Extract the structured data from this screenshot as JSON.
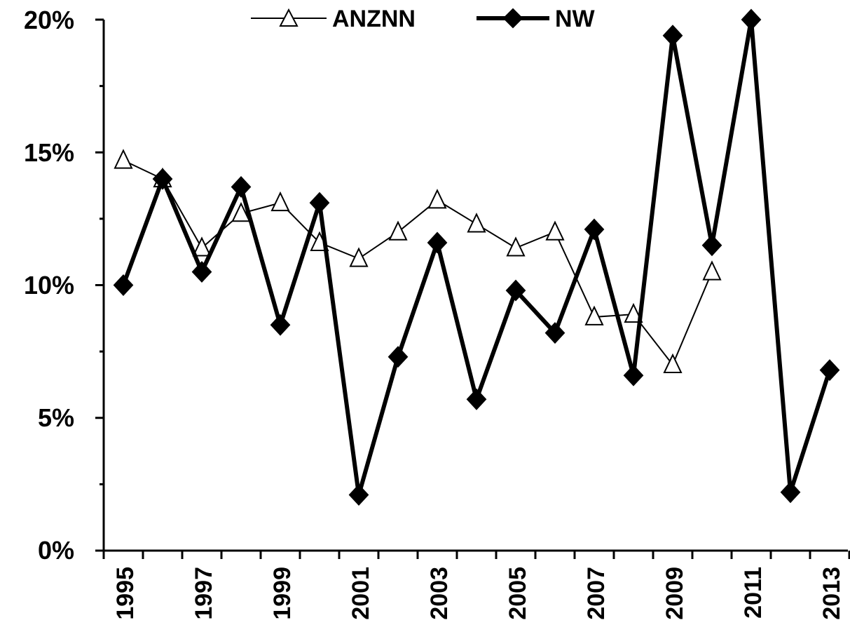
{
  "chart_data": {
    "type": "line",
    "x": [
      1995,
      1996,
      1997,
      1998,
      1999,
      2000,
      2001,
      2002,
      2003,
      2004,
      2005,
      2006,
      2007,
      2008,
      2009,
      2010,
      2011,
      2012,
      2013
    ],
    "x_tick_labels": [
      "1995",
      "1997",
      "1999",
      "2001",
      "2003",
      "2005",
      "2007",
      "2009",
      "2011",
      "2013"
    ],
    "y_tick_labels": [
      "0%",
      "5%",
      "10%",
      "15%",
      "20%"
    ],
    "ylim": [
      0,
      20
    ],
    "ylabel": "",
    "xlabel": "",
    "title": "",
    "grid": false,
    "legend_position": "top-center",
    "series": [
      {
        "name": "ANZNN",
        "marker": "open-triangle",
        "color": "#000000",
        "values": [
          14.7,
          14.0,
          11.4,
          12.7,
          13.1,
          11.6,
          11.0,
          12.0,
          13.2,
          12.3,
          11.4,
          12.0,
          8.8,
          8.9,
          7.0,
          10.5,
          null,
          null,
          null
        ]
      },
      {
        "name": "NW",
        "marker": "filled-diamond",
        "color": "#000000",
        "values": [
          10.0,
          14.0,
          10.5,
          13.7,
          8.5,
          13.1,
          2.1,
          7.3,
          11.6,
          5.7,
          9.8,
          8.2,
          12.1,
          6.6,
          19.4,
          11.5,
          20.0,
          2.2,
          6.8
        ]
      }
    ]
  }
}
